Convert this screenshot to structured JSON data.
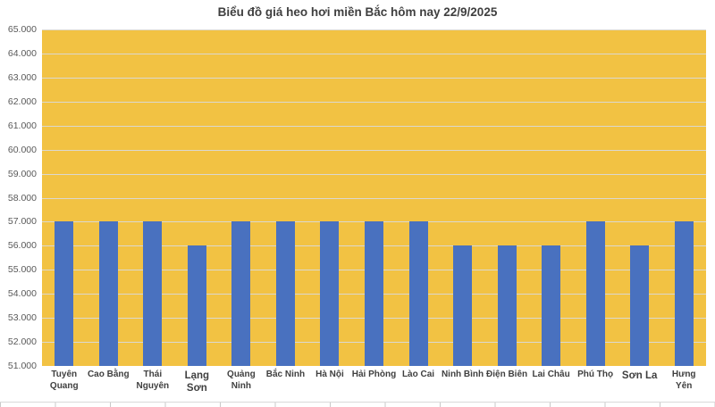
{
  "chart_data": {
    "type": "bar",
    "title": "Biểu đồ giá heo hơi miền Bắc hôm nay 22/9/2025",
    "categories": [
      "Tuyên Quang",
      "Cao Bằng",
      "Thái Nguyên",
      "Lạng Sơn",
      "Quảng Ninh",
      "Bắc Ninh",
      "Hà Nội",
      "Hải Phòng",
      "Lào Cai",
      "Ninh Bình",
      "Điện Biên",
      "Lai Châu",
      "Phú Thọ",
      "Sơn La",
      "Hưng Yên"
    ],
    "values": [
      57000,
      57000,
      57000,
      56000,
      57000,
      57000,
      57000,
      57000,
      57000,
      56000,
      56000,
      56000,
      57000,
      56000,
      57000
    ],
    "xlabel": "",
    "ylabel": "",
    "ylim": [
      51000,
      65000
    ],
    "ytick_step": 1000,
    "ytick_labels": [
      "65.000",
      "64.000",
      "63.000",
      "62.000",
      "61.000",
      "60.000",
      "59.000",
      "58.000",
      "57.000",
      "56.000",
      "55.000",
      "54.000",
      "53.000",
      "52.000",
      "51.000"
    ],
    "grid": true,
    "legend": false,
    "category_label_lines": [
      [
        "Tuyên",
        "Quang"
      ],
      [
        "Cao Bằng"
      ],
      [
        "Thái",
        "Nguyên"
      ],
      [
        "Lạng",
        "Sơn"
      ],
      [
        "Quảng",
        "Ninh"
      ],
      [
        "Bắc Ninh"
      ],
      [
        "Hà Nội"
      ],
      [
        "Hải Phòng"
      ],
      [
        "Lào Cai"
      ],
      [
        "Ninh Bình"
      ],
      [
        "Điện Biên"
      ],
      [
        "Lai Châu"
      ],
      [
        "Phú Thọ"
      ],
      [
        "Sơn La"
      ],
      [
        "Hưng",
        "Yên"
      ]
    ],
    "large_label_indexes": [
      3,
      13
    ],
    "colors": {
      "bar": "#4971BF",
      "plot_background": "#F2C243",
      "gridline": "#DBD8D0",
      "title_text": "#3F3F3F",
      "ytick_text": "#595959",
      "category_text": "#3F3F3F"
    }
  }
}
